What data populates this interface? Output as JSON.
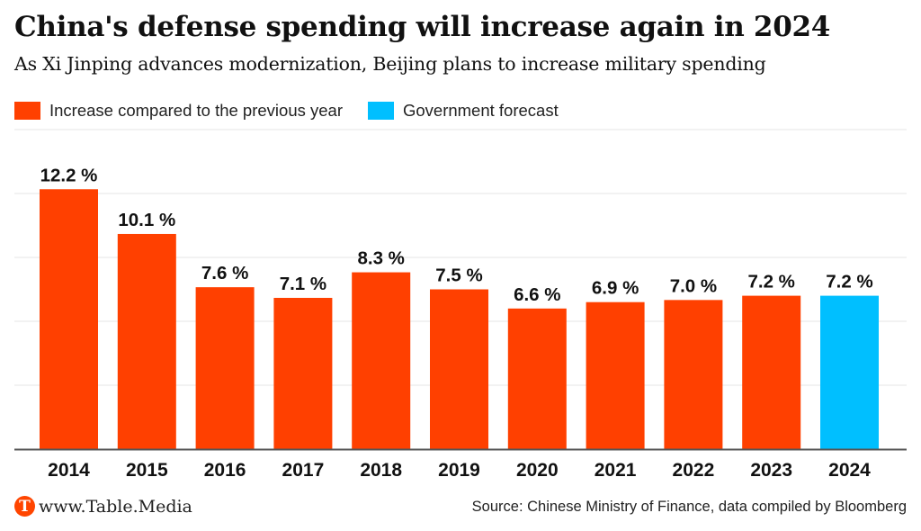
{
  "header": {
    "title": "China's defense spending will increase again in 2024",
    "subtitle": "As Xi Jinping advances modernization, Beijing plans to increase military spending"
  },
  "legend": [
    {
      "label": "Increase compared to the previous year",
      "color": "#ff4000"
    },
    {
      "label": "Government forecast",
      "color": "#00bfff"
    }
  ],
  "footer": {
    "logo_letter": "T",
    "site": "www.Table.Media",
    "source": "Source: Chinese Ministry of Finance, data compiled by Bloomberg"
  },
  "chart_data": {
    "type": "bar",
    "title": "China's defense spending will increase again in 2024",
    "subtitle": "As Xi Jinping advances modernization, Beijing plans to increase military spending",
    "xlabel": "",
    "ylabel": "",
    "ylim": [
      0,
      15
    ],
    "grid": true,
    "gridlines": [
      3,
      6,
      9,
      12,
      15
    ],
    "legend_position": "top-left",
    "categories": [
      "2014",
      "2015",
      "2016",
      "2017",
      "2018",
      "2019",
      "2020",
      "2021",
      "2022",
      "2023",
      "2024"
    ],
    "values": [
      12.2,
      10.1,
      7.6,
      7.1,
      8.3,
      7.5,
      6.6,
      6.9,
      7.0,
      7.2,
      7.2
    ],
    "value_labels": [
      "12.2 %",
      "10.1 %",
      "7.6 %",
      "7.1 %",
      "8.3 %",
      "7.5 %",
      "6.6 %",
      "6.9 %",
      "7.0 %",
      "7.2 %",
      "7.2 %"
    ],
    "series_type": [
      "actual",
      "actual",
      "actual",
      "actual",
      "actual",
      "actual",
      "actual",
      "actual",
      "actual",
      "actual",
      "forecast"
    ],
    "colors": {
      "actual": "#ff4000",
      "forecast": "#00bfff",
      "grid": "#e6e6e6",
      "axis": "#555555"
    }
  }
}
